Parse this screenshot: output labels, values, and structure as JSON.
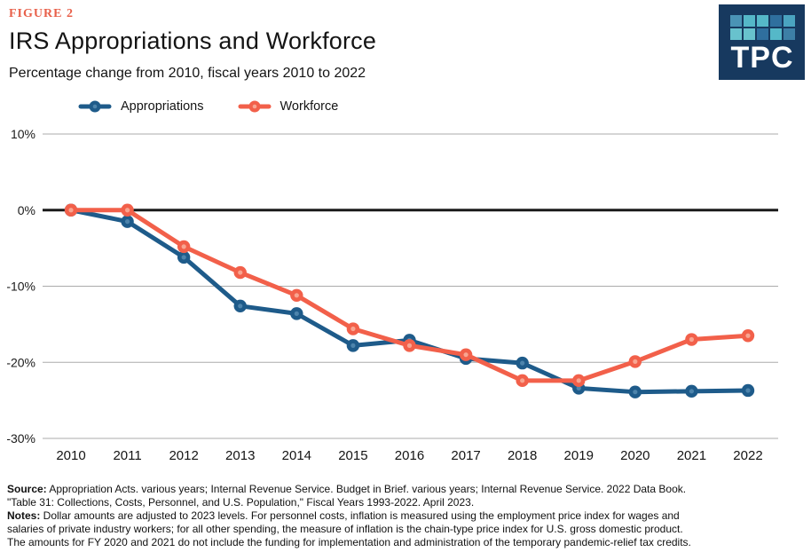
{
  "figure_label": "FIGURE 2",
  "title": "IRS Appropriations and Workforce",
  "subtitle": "Percentage change from 2010, fiscal years 2010 to 2022",
  "logo": {
    "text": "TPC",
    "background": "#17395f",
    "squares": [
      "#4a93b5",
      "#55b8c8",
      "#55b8c8",
      "#2f6f9e",
      "#4aa4c0",
      "#68c2cd",
      "#68c2cd",
      "#2f6f9e",
      "#55b8c8",
      "#3d7fa6"
    ]
  },
  "chart_data": {
    "type": "line",
    "x": [
      2010,
      2011,
      2012,
      2013,
      2014,
      2015,
      2016,
      2017,
      2018,
      2019,
      2020,
      2021,
      2022
    ],
    "series": [
      {
        "name": "Appropriations",
        "color": "#1e5b8a",
        "marker_center": "#4d84ac",
        "values": [
          0,
          -1.5,
          -6.2,
          -12.6,
          -13.6,
          -17.8,
          -17.1,
          -19.5,
          -20.1,
          -23.4,
          -23.9,
          -23.8,
          -23.7
        ]
      },
      {
        "name": "Workforce",
        "color": "#f2604a",
        "marker_center": "#f8a591",
        "values": [
          0,
          0,
          -4.8,
          -8.2,
          -11.2,
          -15.6,
          -17.8,
          -19.0,
          -22.4,
          -22.4,
          -19.9,
          -17.0,
          -16.5
        ]
      }
    ],
    "title": "IRS Appropriations and Workforce",
    "subtitle": "Percentage change from 2010, fiscal years 2010 to 2022",
    "xlabel": "",
    "ylabel": "",
    "ylim": [
      -30,
      10
    ],
    "yticks": [
      10,
      0,
      -10,
      -20,
      -30
    ],
    "ytick_labels": [
      "10%",
      "0%",
      "-10%",
      "-20%",
      "-30%"
    ],
    "grid": true,
    "zero_line": true,
    "legend_position": "top-left"
  },
  "footer": {
    "lines": [
      {
        "bold": "Source:",
        "text": " Appropriation Acts. various years; Internal Revenue Service. Budget in Brief. various years; Internal Revenue Service. 2022 Data Book."
      },
      {
        "bold": "",
        "text": "\"Table 31: Collections, Costs, Personnel, and U.S. Population,\" Fiscal Years 1993-2022. April 2023."
      },
      {
        "bold": "Notes:",
        "text": " Dollar amounts are adjusted to 2023 levels. For personnel costs, inflation is measured using the employment price index for wages and"
      },
      {
        "bold": "",
        "text": "salaries of private industry workers; for all other spending, the measure of inflation is the chain-type price index for U.S. gross domestic product."
      },
      {
        "bold": "",
        "text": "The amounts for FY 2020 and 2021 do not include the funding for implementation and administration of the temporary pandemic-relief tax credits."
      }
    ]
  }
}
